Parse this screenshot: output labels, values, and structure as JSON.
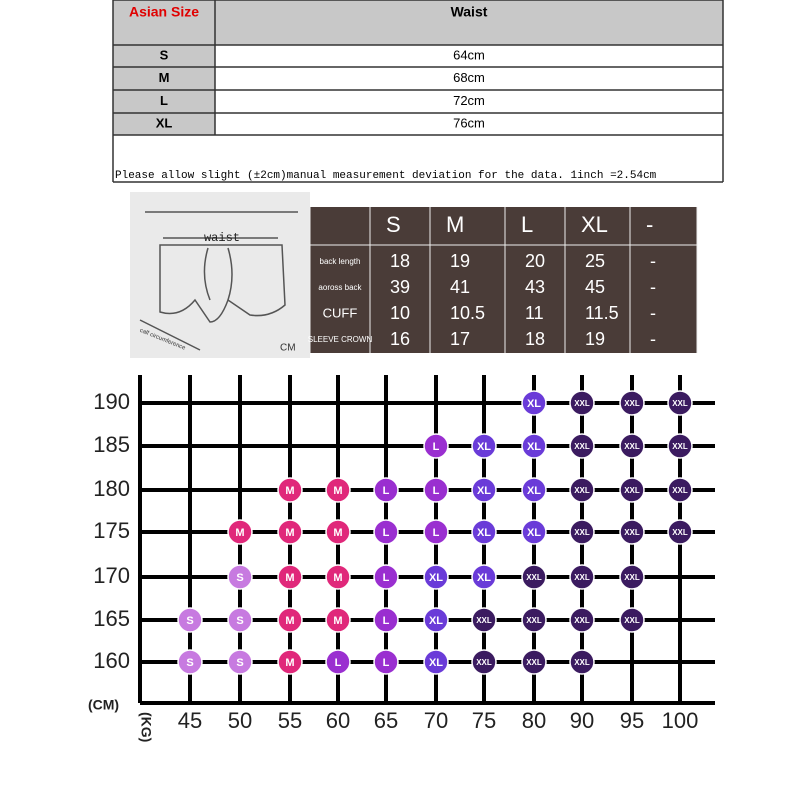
{
  "waist_table": {
    "header": [
      "Asian Size",
      "Waist"
    ],
    "rows": [
      [
        "S",
        "64cm"
      ],
      [
        "M",
        "68cm"
      ],
      [
        "L",
        "72cm"
      ],
      [
        "XL",
        "76cm"
      ]
    ],
    "note": "Please allow slight (±2cm)manual measurement deviation for the data. 1inch =2.54cm"
  },
  "diagram": {
    "waist": "waist",
    "calf": "calf circumference",
    "unit": "CM"
  },
  "measure_table": {
    "header": [
      "S",
      "M",
      "L",
      "XL",
      "-"
    ],
    "rows": [
      [
        "back length",
        "18",
        "19",
        "20",
        "25",
        "-"
      ],
      [
        "aoross back",
        "39",
        "41",
        "43",
        "45",
        "-"
      ],
      [
        "CUFF",
        "10",
        "10.5",
        "11",
        "11.5",
        "-"
      ],
      [
        "SLEEVE CROWN",
        "16",
        "17",
        "18",
        "19",
        "-"
      ]
    ]
  },
  "grid": {
    "y_label": "(CM)",
    "x_label": "(KG)",
    "weights": [
      "45",
      "50",
      "55",
      "60",
      "65",
      "70",
      "75",
      "80",
      "90",
      "95",
      "100"
    ],
    "colors": {
      "S": "#c77ae0",
      "M": "#e0287a",
      "L": "#9a2fd0",
      "XL": "#6a3bd8",
      "XXL": "#3b1b60"
    },
    "rows": [
      {
        "height": "190",
        "cells": [
          null,
          null,
          null,
          null,
          null,
          null,
          null,
          "XL",
          "XXL",
          "XXL",
          "XXL"
        ]
      },
      {
        "height": "185",
        "cells": [
          null,
          null,
          null,
          null,
          null,
          "L",
          "XL",
          "XL",
          "XXL",
          "XXL",
          "XXL"
        ]
      },
      {
        "height": "180",
        "cells": [
          null,
          null,
          "M",
          "M",
          "L",
          "L",
          "XL",
          "XL",
          "XXL",
          "XXL",
          "XXL"
        ]
      },
      {
        "height": "175",
        "cells": [
          null,
          "M",
          "M",
          "M",
          "L",
          "L",
          "XL",
          "XL",
          "XXL",
          "XXL",
          "XXL"
        ]
      },
      {
        "height": "170",
        "cells": [
          null,
          "S",
          "M",
          "M",
          "L",
          "XL",
          "XL",
          "XXL",
          "XXL",
          "XXL",
          null
        ]
      },
      {
        "height": "165",
        "cells": [
          "S",
          "S",
          "M",
          "M",
          "L",
          "XL",
          "XXL",
          "XXL",
          "XXL",
          "XXL",
          null
        ]
      },
      {
        "height": "160",
        "cells": [
          "S",
          "S",
          "M",
          "L",
          "L",
          "XL",
          "XXL",
          "XXL",
          "XXL",
          null,
          null
        ]
      }
    ]
  }
}
